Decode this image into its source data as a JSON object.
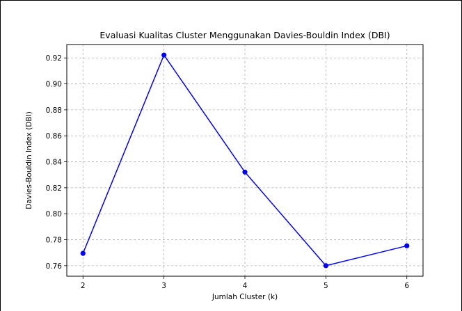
{
  "chart_data": {
    "type": "line",
    "title": "Evaluasi Kualitas Cluster Menggunakan Davies-Bouldin Index (DBI)",
    "xlabel": "Jumlah Cluster (k)",
    "ylabel": "Davies-Bouldin Index (DBI)",
    "x": [
      2,
      3,
      4,
      5,
      6
    ],
    "series": [
      {
        "values": [
          0.7695,
          0.9222,
          0.8321,
          0.76,
          0.7753
        ],
        "color": "#0000ff",
        "marker": "circle"
      }
    ],
    "xticks": [
      "2",
      "3",
      "4",
      "5",
      "6"
    ],
    "yticks": [
      "0.76",
      "0.78",
      "0.80",
      "0.82",
      "0.84",
      "0.86",
      "0.88",
      "0.90",
      "0.92"
    ],
    "xlim": [
      1.8,
      6.2
    ],
    "ylim": [
      0.7519,
      0.9303
    ],
    "grid": true,
    "grid_style": "dashed"
  }
}
